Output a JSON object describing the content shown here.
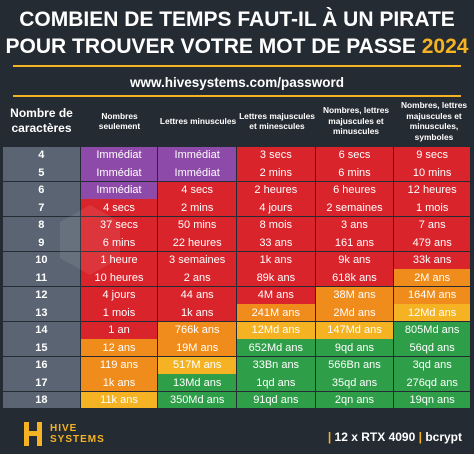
{
  "header": {
    "title_line1": "COMBIEN DE TEMPS FAUT-IL À UN PIRATE",
    "title_line2": "POUR TROUVER VOTRE MOT DE PASSE",
    "title_year": "2024",
    "url": "www.hivesystems.com/password"
  },
  "table": {
    "columns": [
      "Nombre de caractères",
      "Nombres seulement",
      "Lettres minuscules",
      "Lettres majuscules et minescules",
      "Nombres, lettres majuscules et minuscules",
      "Nombres, lettres majuscules et minuscules, symboles"
    ],
    "rows": [
      [
        "4",
        "Immédiat",
        "Immédiat",
        "3 secs",
        "6 secs",
        "9 secs"
      ],
      [
        "5",
        "Immédiat",
        "Immédiat",
        "2 mins",
        "6 mins",
        "10 mins"
      ],
      [
        "6",
        "Immédiat",
        "4 secs",
        "2 heures",
        "6 heures",
        "12 heures"
      ],
      [
        "7",
        "4 secs",
        "2 mins",
        "4 jours",
        "2 semaines",
        "1 mois"
      ],
      [
        "8",
        "37 secs",
        "50 mins",
        "8 mois",
        "3 ans",
        "7 ans"
      ],
      [
        "9",
        "6 mins",
        "22 heures",
        "33 ans",
        "161 ans",
        "479 ans"
      ],
      [
        "10",
        "1 heure",
        "3 semaines",
        "1k ans",
        "9k ans",
        "33k ans"
      ],
      [
        "11",
        "10 heures",
        "2 ans",
        "89k ans",
        "618k ans",
        "2M ans"
      ],
      [
        "12",
        "4 jours",
        "44 ans",
        "4M ans",
        "38M ans",
        "164M ans"
      ],
      [
        "13",
        "1 mois",
        "1k ans",
        "241M ans",
        "2Md ans",
        "12Md ans"
      ],
      [
        "14",
        "1 an",
        "766k ans",
        "12Md ans",
        "147Md ans",
        "805Md ans"
      ],
      [
        "15",
        "12 ans",
        "19M ans",
        "652Md ans",
        "9qd ans",
        "56qd ans"
      ],
      [
        "16",
        "119 ans",
        "517M ans",
        "33Bn ans",
        "566Bn ans",
        "3qd ans"
      ],
      [
        "17",
        "1k ans",
        "13Md ans",
        "1qd ans",
        "35qd ans",
        "276qd ans"
      ],
      [
        "18",
        "11k ans",
        "350Md ans",
        "91qd ans",
        "2qn ans",
        "19qn ans"
      ]
    ],
    "cell_colors": [
      [
        "#5a6472",
        "#8e4aa8",
        "#8e4aa8",
        "#d9242b",
        "#d9242b",
        "#d9242b"
      ],
      [
        "#5a6472",
        "#8e4aa8",
        "#8e4aa8",
        "#d9242b",
        "#d9242b",
        "#d9242b"
      ],
      [
        "#5a6472",
        "#8e4aa8",
        "#d9242b",
        "#d9242b",
        "#d9242b",
        "#d9242b"
      ],
      [
        "#5a6472",
        "#d9242b",
        "#d9242b",
        "#d9242b",
        "#d9242b",
        "#d9242b"
      ],
      [
        "#5a6472",
        "#d9242b",
        "#d9242b",
        "#d9242b",
        "#d9242b",
        "#d9242b"
      ],
      [
        "#5a6472",
        "#d9242b",
        "#d9242b",
        "#d9242b",
        "#d9242b",
        "#d9242b"
      ],
      [
        "#5a6472",
        "#d9242b",
        "#d9242b",
        "#d9242b",
        "#d9242b",
        "#d9242b"
      ],
      [
        "#5a6472",
        "#d9242b",
        "#d9242b",
        "#d9242b",
        "#d9242b",
        "#f08c1c"
      ],
      [
        "#5a6472",
        "#d9242b",
        "#d9242b",
        "#d9242b",
        "#f08c1c",
        "#f08c1c"
      ],
      [
        "#5a6472",
        "#d9242b",
        "#d9242b",
        "#f08c1c",
        "#f08c1c",
        "#f5b323"
      ],
      [
        "#5a6472",
        "#d9242b",
        "#f08c1c",
        "#f5b323",
        "#f5b323",
        "#2e9e48"
      ],
      [
        "#5a6472",
        "#f08c1c",
        "#f08c1c",
        "#2e9e48",
        "#2e9e48",
        "#2e9e48"
      ],
      [
        "#5a6472",
        "#f08c1c",
        "#f5b323",
        "#2e9e48",
        "#2e9e48",
        "#2e9e48"
      ],
      [
        "#5a6472",
        "#f08c1c",
        "#2e9e48",
        "#2e9e48",
        "#2e9e48",
        "#2e9e48"
      ],
      [
        "#5a6472",
        "#f5b323",
        "#2e9e48",
        "#2e9e48",
        "#2e9e48",
        "#2e9e48"
      ]
    ]
  },
  "footer": {
    "brand_line1": "HIVE",
    "brand_line2": "SYSTEMS",
    "hardware": "12 x RTX 4090",
    "separator": "|",
    "algorithm": "bcrypt"
  },
  "colors": {
    "background": "#252b33",
    "accent": "#f5b323"
  }
}
